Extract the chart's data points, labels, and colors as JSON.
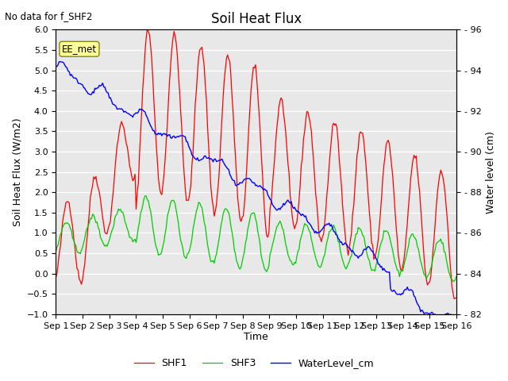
{
  "title": "Soil Heat Flux",
  "subtitle": "No data for f_SHF2",
  "xlabel": "Time",
  "ylabel_left": "Soil Heat Flux (W/m2)",
  "ylabel_right": "Water level (cm)",
  "ylim_left": [
    -1.0,
    6.0
  ],
  "ylim_right": [
    82,
    96
  ],
  "yticks_left": [
    -1.0,
    -0.5,
    0.0,
    0.5,
    1.0,
    1.5,
    2.0,
    2.5,
    3.0,
    3.5,
    4.0,
    4.5,
    5.0,
    5.5,
    6.0
  ],
  "yticks_right": [
    82,
    84,
    86,
    88,
    90,
    92,
    94,
    96
  ],
  "xtick_labels": [
    "Sep 1",
    "Sep 2",
    "Sep 3",
    "Sep 4",
    "Sep 5",
    "Sep 6",
    "Sep 7",
    "Sep 8",
    "Sep 9",
    "Sep 10",
    "Sep 11",
    "Sep 12",
    "Sep 13",
    "Sep 14",
    "Sep 15",
    "Sep 16"
  ],
  "color_shf1": "#ff0000",
  "color_shf3": "#00cc00",
  "color_water": "#0000ff",
  "legend_label_shf1": "SHF1",
  "legend_label_shf3": "SHF3",
  "legend_label_water": "WaterLevel_cm",
  "ee_met_label": "EE_met",
  "plot_bg_color": "#e8e8e8",
  "n_days": 15,
  "n_pts": 360
}
